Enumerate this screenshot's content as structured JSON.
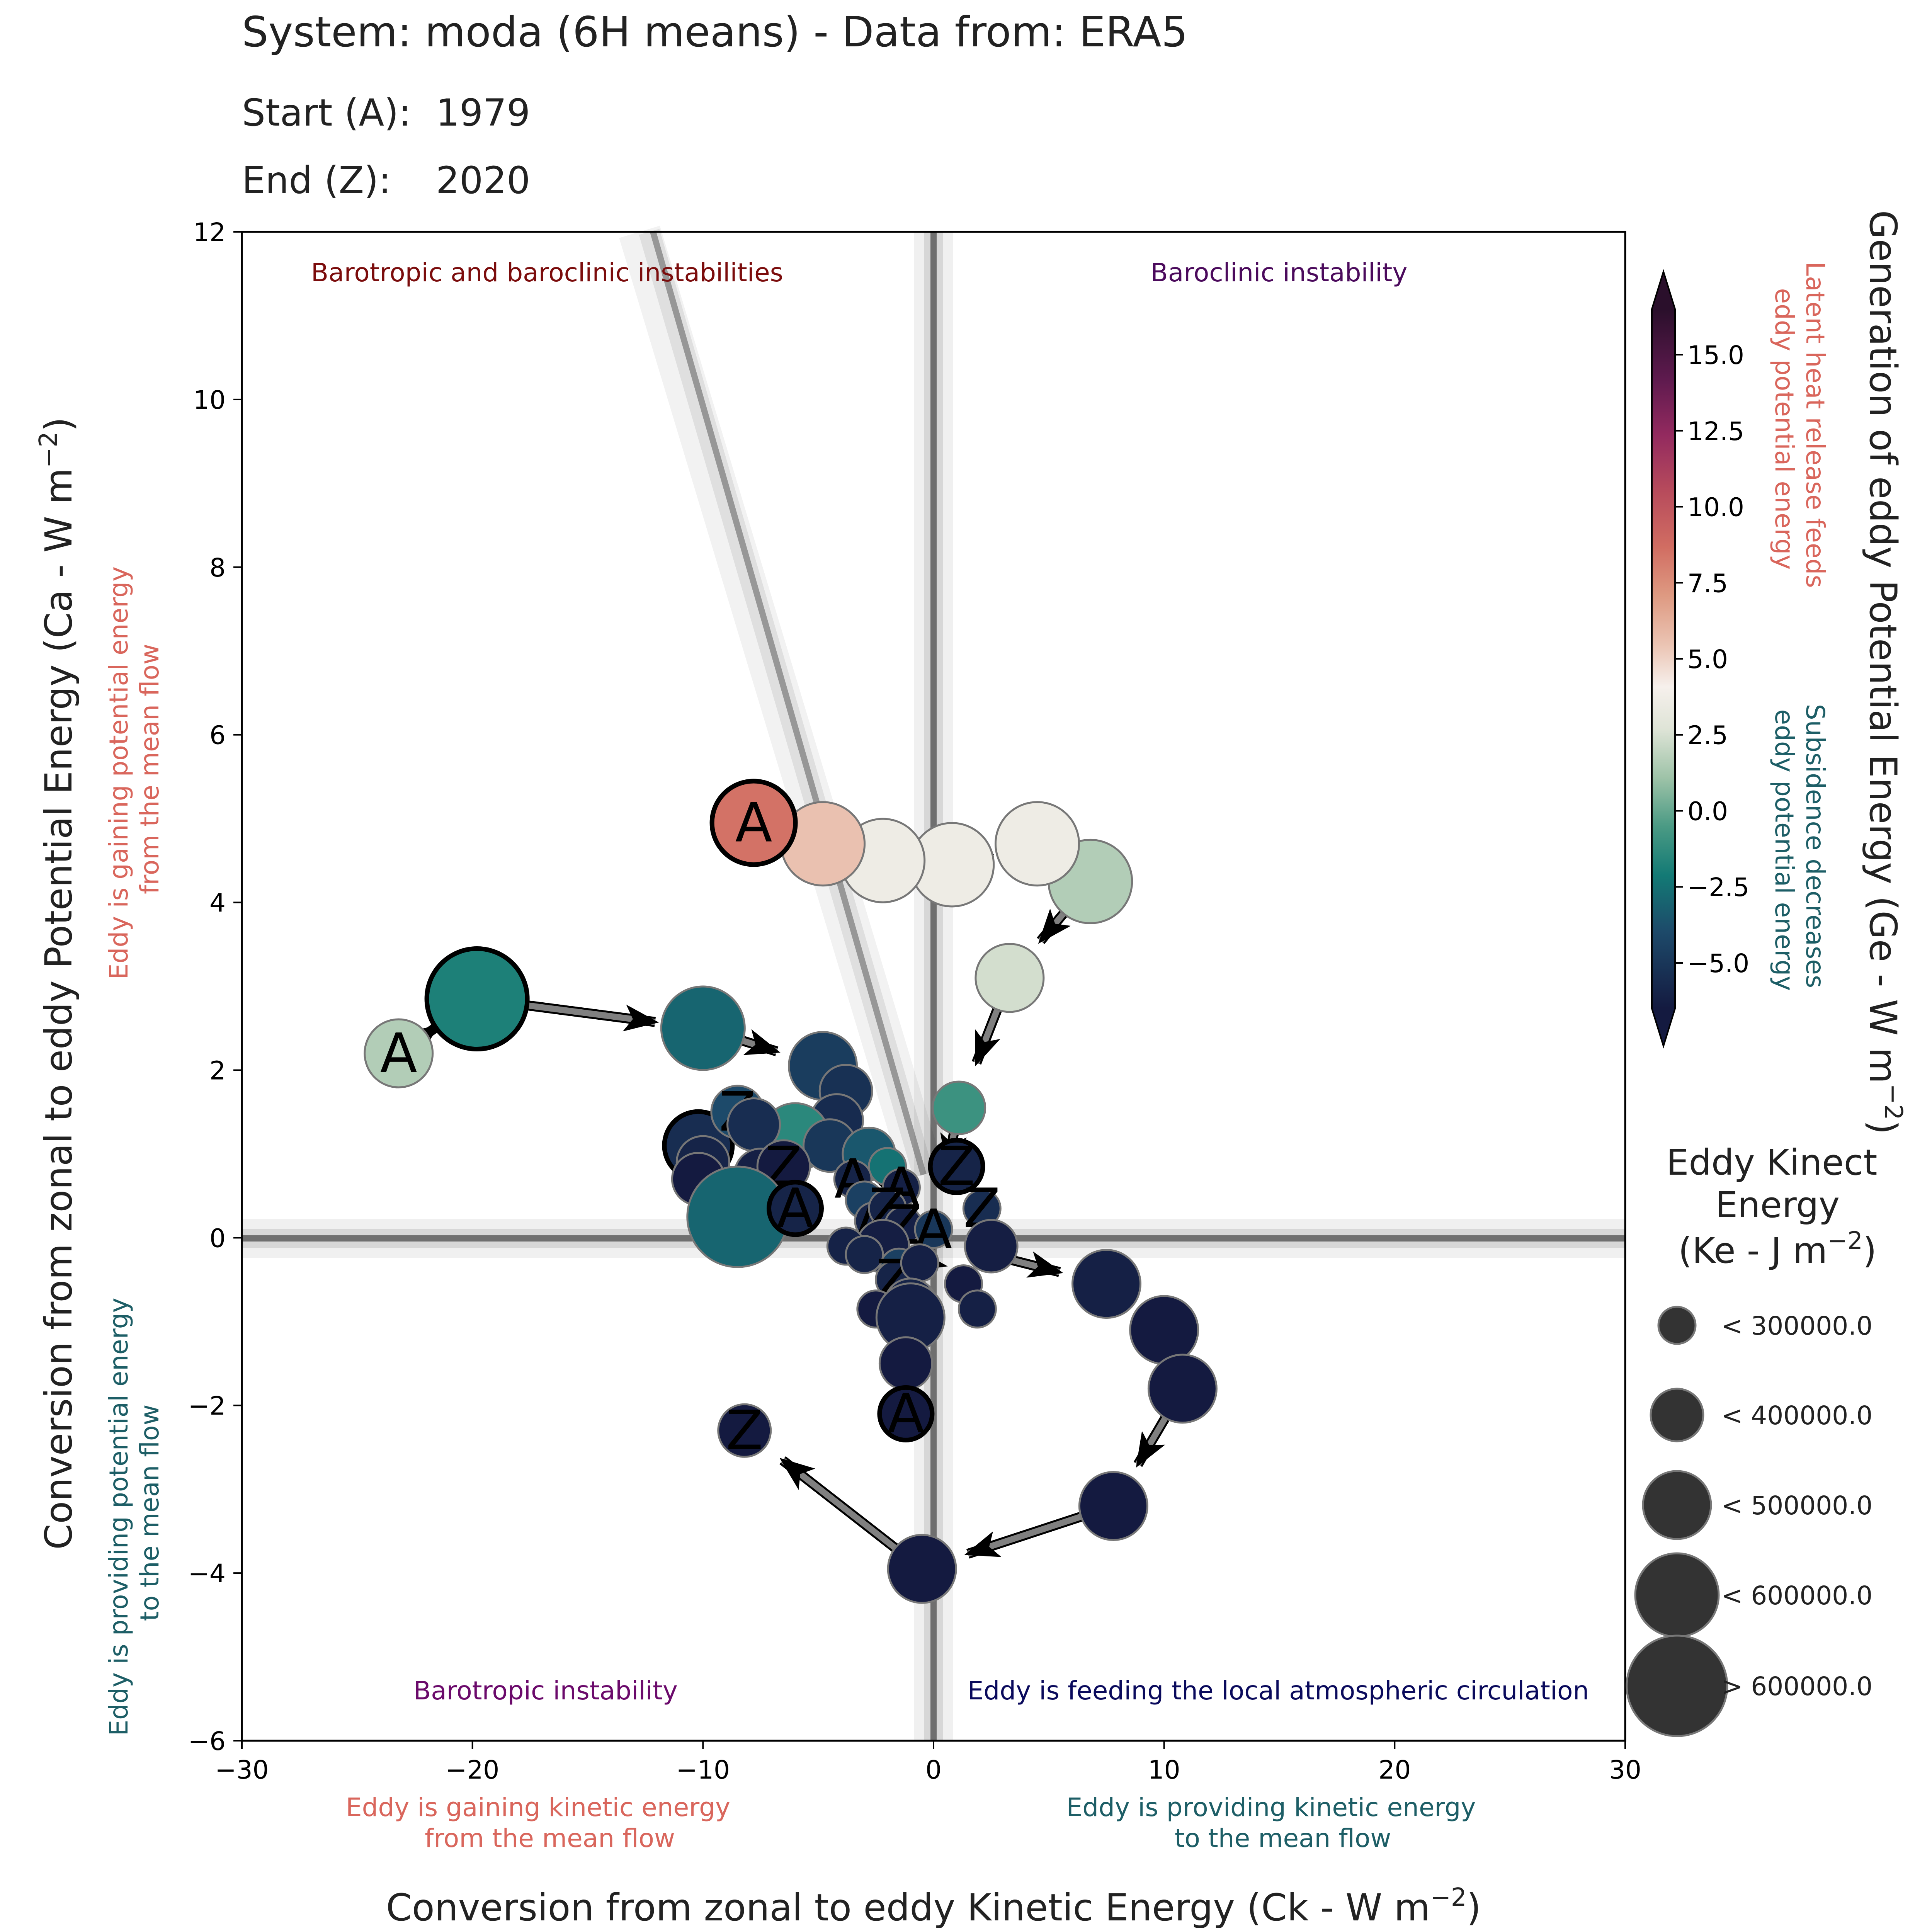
{
  "header": {
    "system_line": "System: moda (6H means) - Data from: ERA5",
    "start_label": "Start (A):",
    "start_value": "1979",
    "end_label": "End (Z):",
    "end_value": "2020"
  },
  "quadrants": {
    "top_left": "Barotropic and baroclinic instabilities",
    "top_right": "Baroclinic instability",
    "bottom_left": "Barotropic instability",
    "bottom_right": "Eddy is feeding the local atmospheric circulation"
  },
  "side_notes": {
    "left_top_line1": "Eddy is gaining potential energy",
    "left_top_line2": "from the mean flow",
    "left_bottom_line1": "Eddy is providing potential energy",
    "left_bottom_line2": "to the mean flow",
    "bottom_left_line1": "Eddy is gaining kinetic energy",
    "bottom_left_line2": "from the mean flow",
    "bottom_right_line1": "Eddy is providing kinetic energy",
    "bottom_right_line2": "to the mean flow",
    "cbar_top_line1": "Latent heat release feeds",
    "cbar_top_line2": "eddy potential energy",
    "cbar_bottom_line1": "Subsidence decreases",
    "cbar_bottom_line2": "eddy potential energy"
  },
  "colors": {
    "gain_text": "#d9665c",
    "loss_text": "#1d5e66",
    "top_left_quadrant": "#7b0c0c",
    "top_right_quadrant": "#4b0a5c",
    "bottom_left_quadrant": "#6b0a6b",
    "bottom_right_quadrant": "#0a0a5c",
    "arrow": "#808080"
  },
  "colorbar": {
    "title": "Generation of eddy Potential Energy (Ge -  W m",
    "title_exp": "−2",
    "title_end": ")",
    "ticks": [
      "15.0",
      "12.5",
      "10.0",
      "7.5",
      "5.0",
      "2.5",
      "0.0",
      "−2.5",
      "−5.0"
    ],
    "tick_values": [
      15,
      12.5,
      10,
      7.5,
      5,
      2.5,
      0,
      -2.5,
      -5
    ],
    "min": -6.5,
    "max": 16.5
  },
  "size_legend": {
    "title_line1": "Eddy Kinect",
    "title_line2": "Energy",
    "title_line3": "(Ke -  J m",
    "title_exp": "−2",
    "title_end": ")",
    "items": [
      "< 300000.0",
      "< 400000.0",
      "< 500000.0",
      "< 600000.0",
      "> 600000.0"
    ]
  },
  "chart_data": {
    "type": "scatter",
    "xlabel": "Conversion from zonal to eddy Kinetic Energy (Ck -  W m",
    "xlabel_exp": "−2",
    "xlabel_end": ")",
    "ylabel": "Conversion from zonal to eddy Potential Energy (Ca -  W m",
    "ylabel_exp": "−2",
    "ylabel_end": ")",
    "xlim": [
      -30,
      30
    ],
    "ylim": [
      -6,
      12
    ],
    "xticks": [
      -30,
      -20,
      -10,
      0,
      10,
      20,
      30
    ],
    "xtick_labels": [
      "−30",
      "−20",
      "−10",
      "0",
      "10",
      "20",
      "30"
    ],
    "yticks": [
      -6,
      -4,
      -2,
      0,
      2,
      4,
      6,
      8,
      10,
      12
    ],
    "ytick_labels": [
      "−6",
      "−4",
      "−2",
      "0",
      "2",
      "4",
      "6",
      "8",
      "10",
      "12"
    ],
    "ge_scale": "Ge",
    "ke_scale": "Ke",
    "arrow_paths": [
      {
        "start_label": "A",
        "points": [
          [
            -23.2,
            2.2
          ],
          [
            -19.8,
            2.85
          ],
          [
            -10.0,
            2.5
          ],
          [
            -4.8,
            2.05
          ],
          [
            -2.5,
            0.9
          ],
          [
            -1.0,
            0.0
          ]
        ]
      },
      {
        "start_label": "A",
        "points": [
          [
            -7.8,
            4.95
          ],
          [
            -4.8,
            4.7
          ],
          [
            -2.2,
            4.5
          ],
          [
            0.8,
            4.45
          ],
          [
            4.5,
            4.7
          ],
          [
            6.8,
            4.25
          ],
          [
            3.3,
            3.1
          ],
          [
            1.1,
            1.55
          ],
          [
            0.2,
            0.3
          ]
        ]
      },
      {
        "start_label": "A",
        "points": [
          [
            -1.2,
            -2.1
          ],
          [
            -1.2,
            -1.5
          ],
          [
            -1.0,
            -0.4
          ],
          [
            1.0,
            -0.1
          ],
          [
            7.5,
            -0.55
          ],
          [
            10.0,
            -1.1
          ],
          [
            10.8,
            -1.8
          ],
          [
            7.8,
            -3.2
          ],
          [
            -0.5,
            -3.95
          ],
          [
            -8.2,
            -2.3
          ]
        ]
      }
    ],
    "points": [
      {
        "x": -23.2,
        "y": 2.2,
        "ge": 8.0,
        "ke": 3,
        "label": "A"
      },
      {
        "x": -19.8,
        "y": 2.85,
        "ge": 4.6,
        "ke": 5,
        "label": "",
        "bold": true
      },
      {
        "x": -10.0,
        "y": 2.5,
        "ge": 3.5,
        "ke": 4
      },
      {
        "x": -4.8,
        "y": 2.05,
        "ge": 1.8,
        "ke": 3
      },
      {
        "x": -3.8,
        "y": 1.75,
        "ge": 1.2,
        "ke": 2
      },
      {
        "x": -4.2,
        "y": 1.4,
        "ge": 0.9,
        "ke": 2
      },
      {
        "x": -6.0,
        "y": 1.2,
        "ge": 5.0,
        "ke": 3
      },
      {
        "x": -4.5,
        "y": 1.1,
        "ge": 1.5,
        "ke": 2
      },
      {
        "x": -2.8,
        "y": 1.0,
        "ge": 3.0,
        "ke": 2
      },
      {
        "x": -2.0,
        "y": 0.85,
        "ge": 4.0,
        "ke": 1
      },
      {
        "x": -10.2,
        "y": 1.1,
        "ge": 1.0,
        "ke": 3,
        "bold": true
      },
      {
        "x": -10.0,
        "y": 0.9,
        "ge": 0.5,
        "ke": 2
      },
      {
        "x": -10.2,
        "y": 0.7,
        "ge": -0.3,
        "ke": 2
      },
      {
        "x": -8.5,
        "y": 1.5,
        "ge": 2.5,
        "ke": 2,
        "label": "Z"
      },
      {
        "x": -7.8,
        "y": 1.35,
        "ge": 1.0,
        "ke": 2
      },
      {
        "x": -7.5,
        "y": 0.75,
        "ge": 0.3,
        "ke": 2
      },
      {
        "x": -6.5,
        "y": 0.85,
        "ge": 0.0,
        "ke": 2,
        "label": "Z"
      },
      {
        "x": -8.5,
        "y": 0.25,
        "ge": 3.5,
        "ke": 5
      },
      {
        "x": -6.0,
        "y": 0.35,
        "ge": 0.5,
        "ke": 2,
        "label": "A",
        "bold": true
      },
      {
        "x": -3.5,
        "y": 0.7,
        "ge": 0.5,
        "ke": 1,
        "label": "A"
      },
      {
        "x": -3.0,
        "y": 0.45,
        "ge": 2.0,
        "ke": 1
      },
      {
        "x": -1.4,
        "y": 0.6,
        "ge": 0.3,
        "ke": 1,
        "label": "A"
      },
      {
        "x": -2.6,
        "y": 0.2,
        "ge": 0.5,
        "ke": 1,
        "label": "A"
      },
      {
        "x": -2.0,
        "y": 0.35,
        "ge": 0.5,
        "ke": 1,
        "label": "Z"
      },
      {
        "x": -1.3,
        "y": 0.15,
        "ge": 0.3,
        "ke": 1,
        "label": "Z"
      },
      {
        "x": 0.0,
        "y": 0.1,
        "ge": 1.5,
        "ke": 1,
        "label": "A"
      },
      {
        "x": -2.2,
        "y": -0.1,
        "ge": 0.2,
        "ke": 2
      },
      {
        "x": -3.8,
        "y": -0.1,
        "ge": 0.4,
        "ke": 1
      },
      {
        "x": -3.0,
        "y": -0.2,
        "ge": 0.5,
        "ke": 1
      },
      {
        "x": -1.5,
        "y": -0.35,
        "ge": 2.0,
        "ke": 1
      },
      {
        "x": -1.7,
        "y": -0.5,
        "ge": 0.5,
        "ke": 1,
        "label": "Z"
      },
      {
        "x": -0.6,
        "y": -0.3,
        "ge": 0.3,
        "ke": 1
      },
      {
        "x": 1.0,
        "y": 0.85,
        "ge": 0.5,
        "ke": 2,
        "label": "Z",
        "bold": true
      },
      {
        "x": 2.1,
        "y": 0.35,
        "ge": 1.0,
        "ke": 1,
        "label": "Z"
      },
      {
        "x": 2.5,
        "y": -0.1,
        "ge": 0.2,
        "ke": 2
      },
      {
        "x": 1.3,
        "y": -0.55,
        "ge": -1.5,
        "ke": 1
      },
      {
        "x": 1.9,
        "y": -0.85,
        "ge": 0.3,
        "ke": 1
      },
      {
        "x": -2.5,
        "y": -0.85,
        "ge": -0.5,
        "ke": 1
      },
      {
        "x": -1.0,
        "y": -0.8,
        "ge": 0.5,
        "ke": 2
      },
      {
        "x": -1.0,
        "y": -0.95,
        "ge": 0.3,
        "ke": 3
      },
      {
        "x": 1.1,
        "y": 1.55,
        "ge": 5.5,
        "ke": 2
      },
      {
        "x": 3.3,
        "y": 3.1,
        "ge": 8.8,
        "ke": 3
      },
      {
        "x": 6.8,
        "y": 4.25,
        "ge": 8.0,
        "ke": 4
      },
      {
        "x": 4.5,
        "y": 4.7,
        "ge": 10.0,
        "ke": 4
      },
      {
        "x": 0.8,
        "y": 4.45,
        "ge": 10.0,
        "ke": 4
      },
      {
        "x": -2.2,
        "y": 4.5,
        "ge": 10.0,
        "ke": 4
      },
      {
        "x": -4.8,
        "y": 4.7,
        "ge": 12.0,
        "ke": 4
      },
      {
        "x": -7.8,
        "y": 4.95,
        "ge": 15.0,
        "ke": 4,
        "label": "A",
        "bold": true
      },
      {
        "x": 7.5,
        "y": -0.55,
        "ge": 0.3,
        "ke": 3
      },
      {
        "x": 10.0,
        "y": -1.1,
        "ge": 0.0,
        "ke": 3
      },
      {
        "x": 10.8,
        "y": -1.8,
        "ge": -0.5,
        "ke": 3
      },
      {
        "x": 7.8,
        "y": -3.2,
        "ge": 0.0,
        "ke": 3
      },
      {
        "x": -0.5,
        "y": -3.95,
        "ge": -0.5,
        "ke": 3
      },
      {
        "x": -8.2,
        "y": -2.3,
        "ge": -0.5,
        "ke": 2,
        "label": "Z"
      },
      {
        "x": -1.2,
        "y": -1.5,
        "ge": -2.0,
        "ke": 2
      },
      {
        "x": -1.2,
        "y": -2.1,
        "ge": -2.0,
        "ke": 2,
        "label": "A",
        "bold": true
      }
    ]
  }
}
